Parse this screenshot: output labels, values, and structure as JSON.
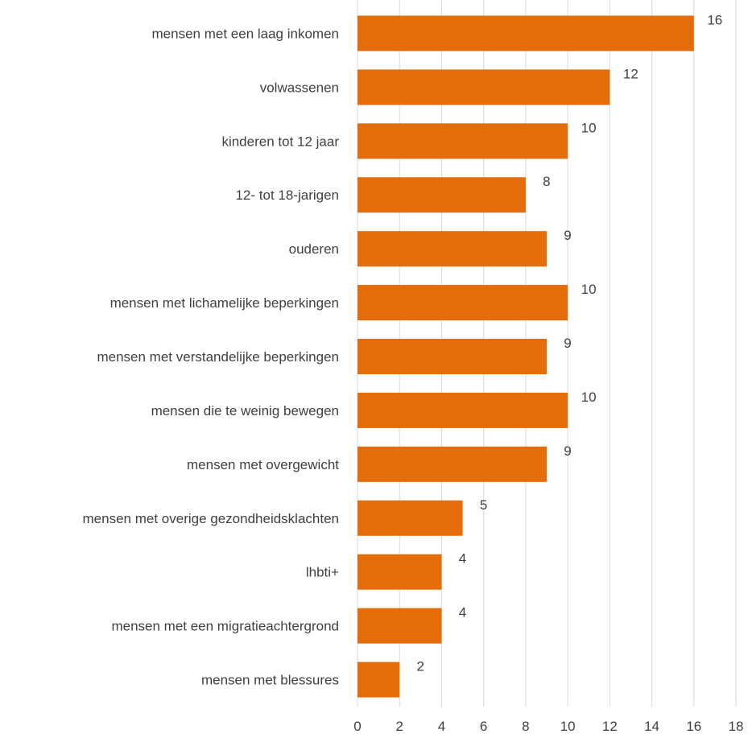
{
  "chart_data": {
    "type": "bar",
    "orientation": "horizontal",
    "categories": [
      "mensen met een laag inkomen",
      "volwassenen",
      "kinderen tot 12 jaar",
      "12- tot 18-jarigen",
      "ouderen",
      "mensen met lichamelijke beperkingen",
      "mensen met verstandelijke beperkingen",
      "mensen die te weinig bewegen",
      "mensen met overgewicht",
      "mensen met overige gezondheidsklachten",
      "lhbti+",
      "mensen met een migratieachtergrond",
      "mensen met blessures"
    ],
    "values": [
      16,
      12,
      10,
      8,
      9,
      10,
      9,
      10,
      9,
      5,
      4,
      4,
      2
    ],
    "xlim": [
      0,
      18
    ],
    "xticks": [
      "0",
      "2",
      "4",
      "6",
      "8",
      "10",
      "12",
      "14",
      "16",
      "18"
    ],
    "grid": true,
    "bar_color": "#e46c0a",
    "data_labels": true,
    "legend": "none"
  }
}
